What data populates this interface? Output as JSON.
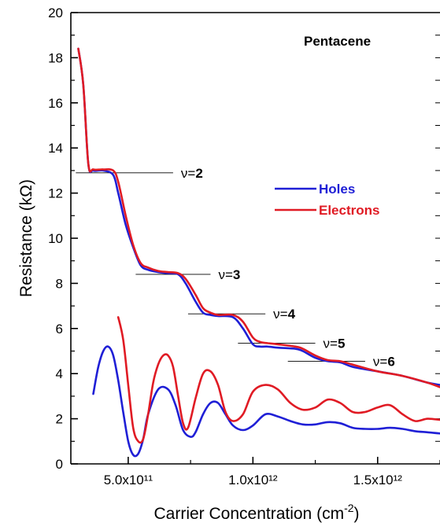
{
  "chart_data": {
    "type": "line",
    "title": "Pentacene",
    "xlabel": "Carrier Concentration (cm⁻²)",
    "ylabel": "Resistance (kΩ)",
    "xlim": [
      270000000000.0,
      1750000000000.0
    ],
    "ylim": [
      0,
      20
    ],
    "grid": false,
    "legend_position": "right",
    "x_ticks": [
      {
        "value": 500000000000.0,
        "label": "5.0x10¹¹"
      },
      {
        "value": 1000000000000.0,
        "label": "1.0x10¹²"
      },
      {
        "value": 1500000000000.0,
        "label": "1.5x10¹²"
      }
    ],
    "y_ticks": [
      0,
      2,
      4,
      6,
      8,
      10,
      12,
      14,
      16,
      18,
      20
    ],
    "series": [
      {
        "name": "Holes",
        "role": "Rxy",
        "color": "#1f1fd6",
        "x": [
          300000000000.0,
          320000000000.0,
          340000000000.0,
          360000000000.0,
          400000000000.0,
          440000000000.0,
          460000000000.0,
          490000000000.0,
          520000000000.0,
          550000000000.0,
          580000000000.0,
          620000000000.0,
          660000000000.0,
          700000000000.0,
          730000000000.0,
          770000000000.0,
          800000000000.0,
          830000000000.0,
          860000000000.0,
          920000000000.0,
          960000000000.0,
          1000000000000.0,
          1030000000000.0,
          1060000000000.0,
          1100000000000.0,
          1170000000000.0,
          1200000000000.0,
          1250000000000.0,
          1300000000000.0,
          1350000000000.0,
          1400000000000.0,
          1500000000000.0,
          1600000000000.0,
          1700000000000.0,
          1750000000000.0
        ],
        "values": [
          18.4,
          16.8,
          13.3,
          13.0,
          13.0,
          12.8,
          12.0,
          10.6,
          9.6,
          8.8,
          8.6,
          8.5,
          8.45,
          8.4,
          8.0,
          7.2,
          6.7,
          6.6,
          6.55,
          6.5,
          6.0,
          5.3,
          5.2,
          5.2,
          5.15,
          5.1,
          5.0,
          4.7,
          4.55,
          4.5,
          4.3,
          4.1,
          3.9,
          3.6,
          3.5
        ]
      },
      {
        "name": "Electrons",
        "role": "Rxy",
        "color": "#e01b24",
        "x": [
          300000000000.0,
          320000000000.0,
          340000000000.0,
          360000000000.0,
          400000000000.0,
          440000000000.0,
          460000000000.0,
          490000000000.0,
          520000000000.0,
          550000000000.0,
          580000000000.0,
          620000000000.0,
          660000000000.0,
          700000000000.0,
          730000000000.0,
          770000000000.0,
          800000000000.0,
          830000000000.0,
          860000000000.0,
          920000000000.0,
          960000000000.0,
          1000000000000.0,
          1030000000000.0,
          1060000000000.0,
          1100000000000.0,
          1170000000000.0,
          1200000000000.0,
          1250000000000.0,
          1300000000000.0,
          1350000000000.0,
          1400000000000.0,
          1500000000000.0,
          1600000000000.0,
          1700000000000.0,
          1750000000000.0
        ],
        "values": [
          18.4,
          16.8,
          13.3,
          13.05,
          13.05,
          13.0,
          12.5,
          11.0,
          9.7,
          8.9,
          8.7,
          8.55,
          8.5,
          8.45,
          8.2,
          7.5,
          6.9,
          6.7,
          6.6,
          6.6,
          6.3,
          5.6,
          5.4,
          5.35,
          5.3,
          5.2,
          5.1,
          4.8,
          4.6,
          4.55,
          4.4,
          4.1,
          3.9,
          3.6,
          3.4
        ]
      },
      {
        "name": "Holes",
        "role": "Rxx",
        "color": "#1f1fd6",
        "x": [
          360000000000.0,
          380000000000.0,
          400000000000.0,
          420000000000.0,
          440000000000.0,
          460000000000.0,
          480000000000.0,
          500000000000.0,
          520000000000.0,
          540000000000.0,
          560000000000.0,
          580000000000.0,
          620000000000.0,
          660000000000.0,
          690000000000.0,
          720000000000.0,
          750000000000.0,
          770000000000.0,
          800000000000.0,
          830000000000.0,
          860000000000.0,
          890000000000.0,
          920000000000.0,
          960000000000.0,
          1000000000000.0,
          1050000000000.0,
          1100000000000.0,
          1150000000000.0,
          1200000000000.0,
          1250000000000.0,
          1300000000000.0,
          1350000000000.0,
          1400000000000.0,
          1450000000000.0,
          1500000000000.0,
          1550000000000.0,
          1600000000000.0,
          1650000000000.0,
          1700000000000.0,
          1750000000000.0
        ],
        "values": [
          3.1,
          4.3,
          5.0,
          5.2,
          4.8,
          3.7,
          2.3,
          1.0,
          0.4,
          0.45,
          1.1,
          2.2,
          3.3,
          3.3,
          2.6,
          1.5,
          1.2,
          1.4,
          2.2,
          2.7,
          2.7,
          2.2,
          1.7,
          1.5,
          1.7,
          2.2,
          2.1,
          1.9,
          1.75,
          1.75,
          1.85,
          1.8,
          1.6,
          1.55,
          1.55,
          1.6,
          1.55,
          1.45,
          1.4,
          1.35
        ]
      },
      {
        "name": "Electrons",
        "role": "Rxx",
        "color": "#e01b24",
        "x": [
          460000000000.0,
          480000000000.0,
          500000000000.0,
          520000000000.0,
          540000000000.0,
          560000000000.0,
          580000000000.0,
          600000000000.0,
          620000000000.0,
          640000000000.0,
          660000000000.0,
          680000000000.0,
          700000000000.0,
          720000000000.0,
          740000000000.0,
          770000000000.0,
          800000000000.0,
          830000000000.0,
          860000000000.0,
          890000000000.0,
          920000000000.0,
          960000000000.0,
          1000000000000.0,
          1050000000000.0,
          1100000000000.0,
          1150000000000.0,
          1200000000000.0,
          1250000000000.0,
          1300000000000.0,
          1350000000000.0,
          1400000000000.0,
          1450000000000.0,
          1500000000000.0,
          1550000000000.0,
          1600000000000.0,
          1650000000000.0,
          1700000000000.0,
          1750000000000.0
        ],
        "values": [
          6.5,
          5.5,
          3.5,
          1.6,
          1.0,
          1.1,
          2.2,
          3.6,
          4.4,
          4.8,
          4.8,
          4.3,
          3.0,
          1.8,
          1.6,
          2.9,
          4.0,
          4.1,
          3.5,
          2.3,
          1.9,
          2.2,
          3.2,
          3.5,
          3.3,
          2.7,
          2.4,
          2.5,
          2.85,
          2.7,
          2.3,
          2.3,
          2.5,
          2.6,
          2.2,
          1.9,
          2.0,
          1.95
        ]
      }
    ],
    "plateaus": [
      {
        "label_prefix": "ν=",
        "label_num": "2",
        "y": 12.9,
        "x_start": 290000000000.0,
        "x_end": 680000000000.0
      },
      {
        "label_prefix": "ν=",
        "label_num": "3",
        "y": 8.4,
        "x_start": 530000000000.0,
        "x_end": 830000000000.0
      },
      {
        "label_prefix": "ν=",
        "label_num": "4",
        "y": 6.65,
        "x_start": 740000000000.0,
        "x_end": 1050000000000.0
      },
      {
        "label_prefix": "ν=",
        "label_num": "5",
        "y": 5.35,
        "x_start": 940000000000.0,
        "x_end": 1250000000000.0
      },
      {
        "label_prefix": "ν=",
        "label_num": "6",
        "y": 4.55,
        "x_start": 1140000000000.0,
        "x_end": 1450000000000.0
      }
    ],
    "legend": [
      {
        "name": "Holes",
        "color": "#1f1fd6"
      },
      {
        "name": "Electrons",
        "color": "#e01b24"
      }
    ]
  }
}
